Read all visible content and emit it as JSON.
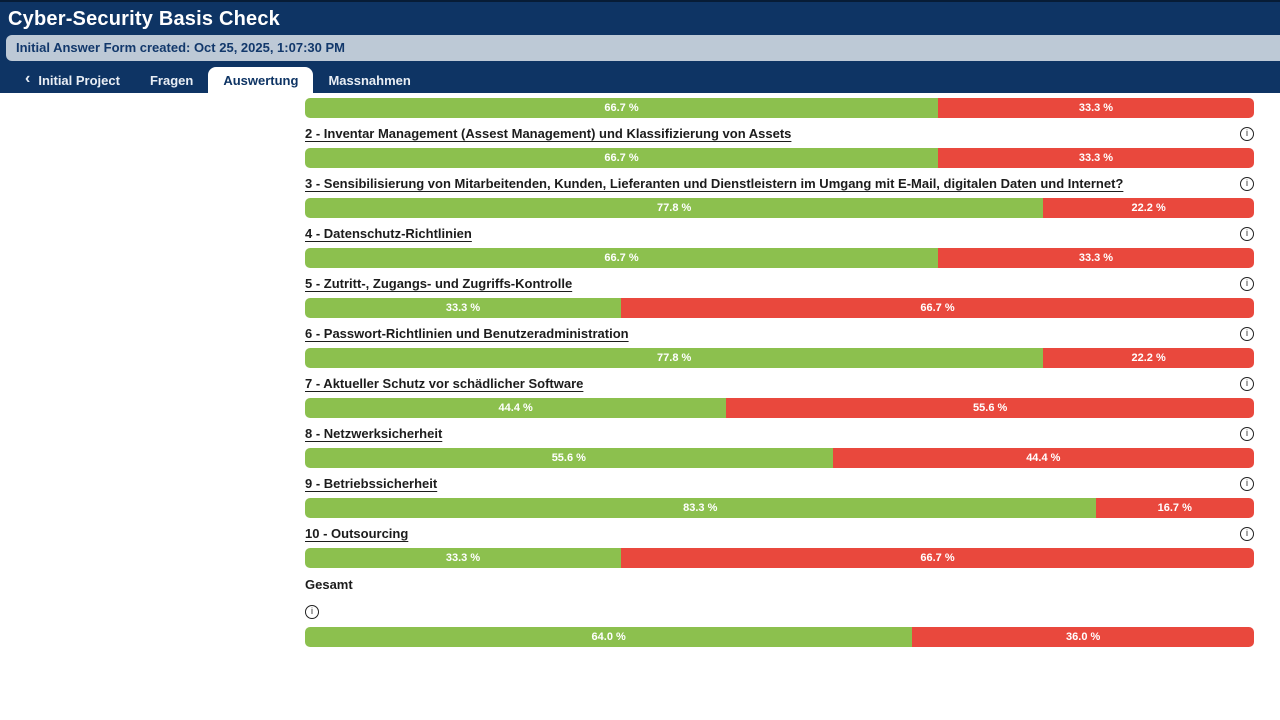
{
  "header": {
    "title": "Cyber-Security Basis Check"
  },
  "info_banner": {
    "text": "Initial Answer Form created: Oct 25, 2025, 1:07:30 PM"
  },
  "tabs": {
    "back": {
      "chevron": "‹",
      "label": "Initial Project"
    },
    "items": [
      {
        "label": "Fragen",
        "active": false
      },
      {
        "label": "Auswertung",
        "active": true
      },
      {
        "label": "Massnahmen",
        "active": false
      }
    ]
  },
  "colors": {
    "navy": "#0E3464",
    "banner_bg": "#BDC9D6",
    "green": "#8CC04E",
    "red": "#E9483D"
  },
  "chart_data": {
    "type": "bar",
    "subtype": "horizontal-stacked",
    "legend": [
      "positive (green)",
      "negative (red)"
    ],
    "unit": "%",
    "categories": [
      "",
      "2 - Inventar Management (Assest Management) und Klassifizierung von Assets",
      "3 - Sensibilisierung von Mitarbeitenden, Kunden, Lieferanten und Dienstleistern im Umgang mit E-Mail, digitalen Daten und Internet?",
      "4 - Datenschutz-Richtlinien",
      "5 - Zutritt-, Zugangs- und Zugriffs-Kontrolle",
      "6 - Passwort-Richtlinien und Benutzeradministration",
      "7 - Aktueller Schutz vor schädlicher Software",
      "8 - Netzwerksicherheit",
      "9 - Betriebssicherheit",
      "10 - Outsourcing",
      "Gesamt"
    ],
    "series": [
      {
        "name": "green",
        "values": [
          66.7,
          66.7,
          77.8,
          66.7,
          33.3,
          77.8,
          44.4,
          55.6,
          83.3,
          33.3,
          64.0
        ]
      },
      {
        "name": "red",
        "values": [
          33.3,
          33.3,
          22.2,
          33.3,
          66.7,
          22.2,
          55.6,
          44.4,
          16.7,
          66.7,
          36.0
        ]
      }
    ]
  },
  "evaluation": {
    "rows": [
      {
        "label": "",
        "green_pct": 66.7,
        "red_pct": 33.3,
        "green_label": "66.7 %",
        "red_label": "33.3 %"
      },
      {
        "label": "2 - Inventar Management (Assest Management) und Klassifizierung von Assets",
        "green_pct": 66.7,
        "red_pct": 33.3,
        "green_label": "66.7 %",
        "red_label": "33.3 %"
      },
      {
        "label": "3 - Sensibilisierung von Mitarbeitenden, Kunden, Lieferanten und Dienstleistern im Umgang mit E-Mail, digitalen Daten und Internet?",
        "green_pct": 77.8,
        "red_pct": 22.2,
        "green_label": "77.8 %",
        "red_label": "22.2 %"
      },
      {
        "label": "4 - Datenschutz-Richtlinien",
        "green_pct": 66.7,
        "red_pct": 33.3,
        "green_label": "66.7 %",
        "red_label": "33.3 %"
      },
      {
        "label": "5 - Zutritt-, Zugangs- und Zugriffs-Kontrolle",
        "green_pct": 33.3,
        "red_pct": 66.7,
        "green_label": "33.3 %",
        "red_label": "66.7 %"
      },
      {
        "label": "6 - Passwort-Richtlinien und Benutzeradministration",
        "green_pct": 77.8,
        "red_pct": 22.2,
        "green_label": "77.8 %",
        "red_label": "22.2 %"
      },
      {
        "label": "7 - Aktueller Schutz vor schädlicher Software",
        "green_pct": 44.4,
        "red_pct": 55.6,
        "green_label": "44.4 %",
        "red_label": "55.6 %"
      },
      {
        "label": "8 - Netzwerksicherheit",
        "green_pct": 55.6,
        "red_pct": 44.4,
        "green_label": "55.6 %",
        "red_label": "44.4 %"
      },
      {
        "label": "9 - Betriebssicherheit",
        "green_pct": 83.3,
        "red_pct": 16.7,
        "green_label": "83.3 %",
        "red_label": "16.7 %"
      },
      {
        "label": "10 - Outsourcing",
        "green_pct": 33.3,
        "red_pct": 66.7,
        "green_label": "33.3 %",
        "red_label": "66.7 %"
      }
    ],
    "total": {
      "label": "Gesamt",
      "green_pct": 64.0,
      "red_pct": 36.0,
      "green_label": "64.0 %",
      "red_label": "36.0 %"
    }
  }
}
